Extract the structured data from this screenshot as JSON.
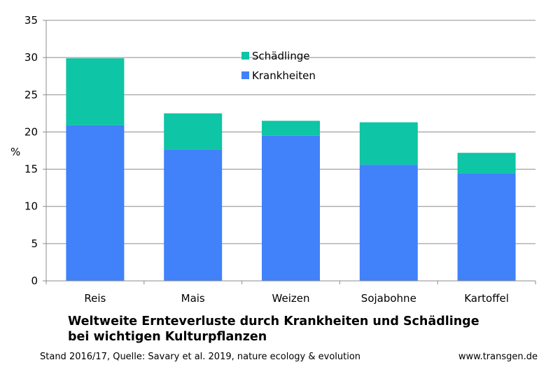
{
  "chart_data": {
    "type": "bar",
    "stacked": true,
    "categories": [
      "Reis",
      "Mais",
      "Weizen",
      "Sojabohne",
      "Kartoffel"
    ],
    "series": [
      {
        "name": "Krankheiten",
        "color": "#4181fa",
        "values": [
          20.9,
          17.6,
          19.5,
          15.6,
          14.4
        ]
      },
      {
        "name": "Schädlinge",
        "color": "#0ec5a5",
        "values": [
          9.0,
          4.9,
          2.0,
          5.7,
          2.8
        ]
      }
    ],
    "ylabel": "%",
    "ylim": [
      0,
      35
    ],
    "yticks": [
      0,
      5,
      10,
      15,
      20,
      25,
      30,
      35
    ],
    "grid": true,
    "legend_position": "top-center",
    "title_line1": "Weltweite Ernteverluste durch Krankheiten und Schädlinge",
    "title_line2": "bei wichtigen Kulturpflanzen"
  },
  "footer": {
    "source": "Stand 2016/17, Quelle: Savary et al. 2019, nature ecology & evolution",
    "website": "www.transgen.de"
  }
}
